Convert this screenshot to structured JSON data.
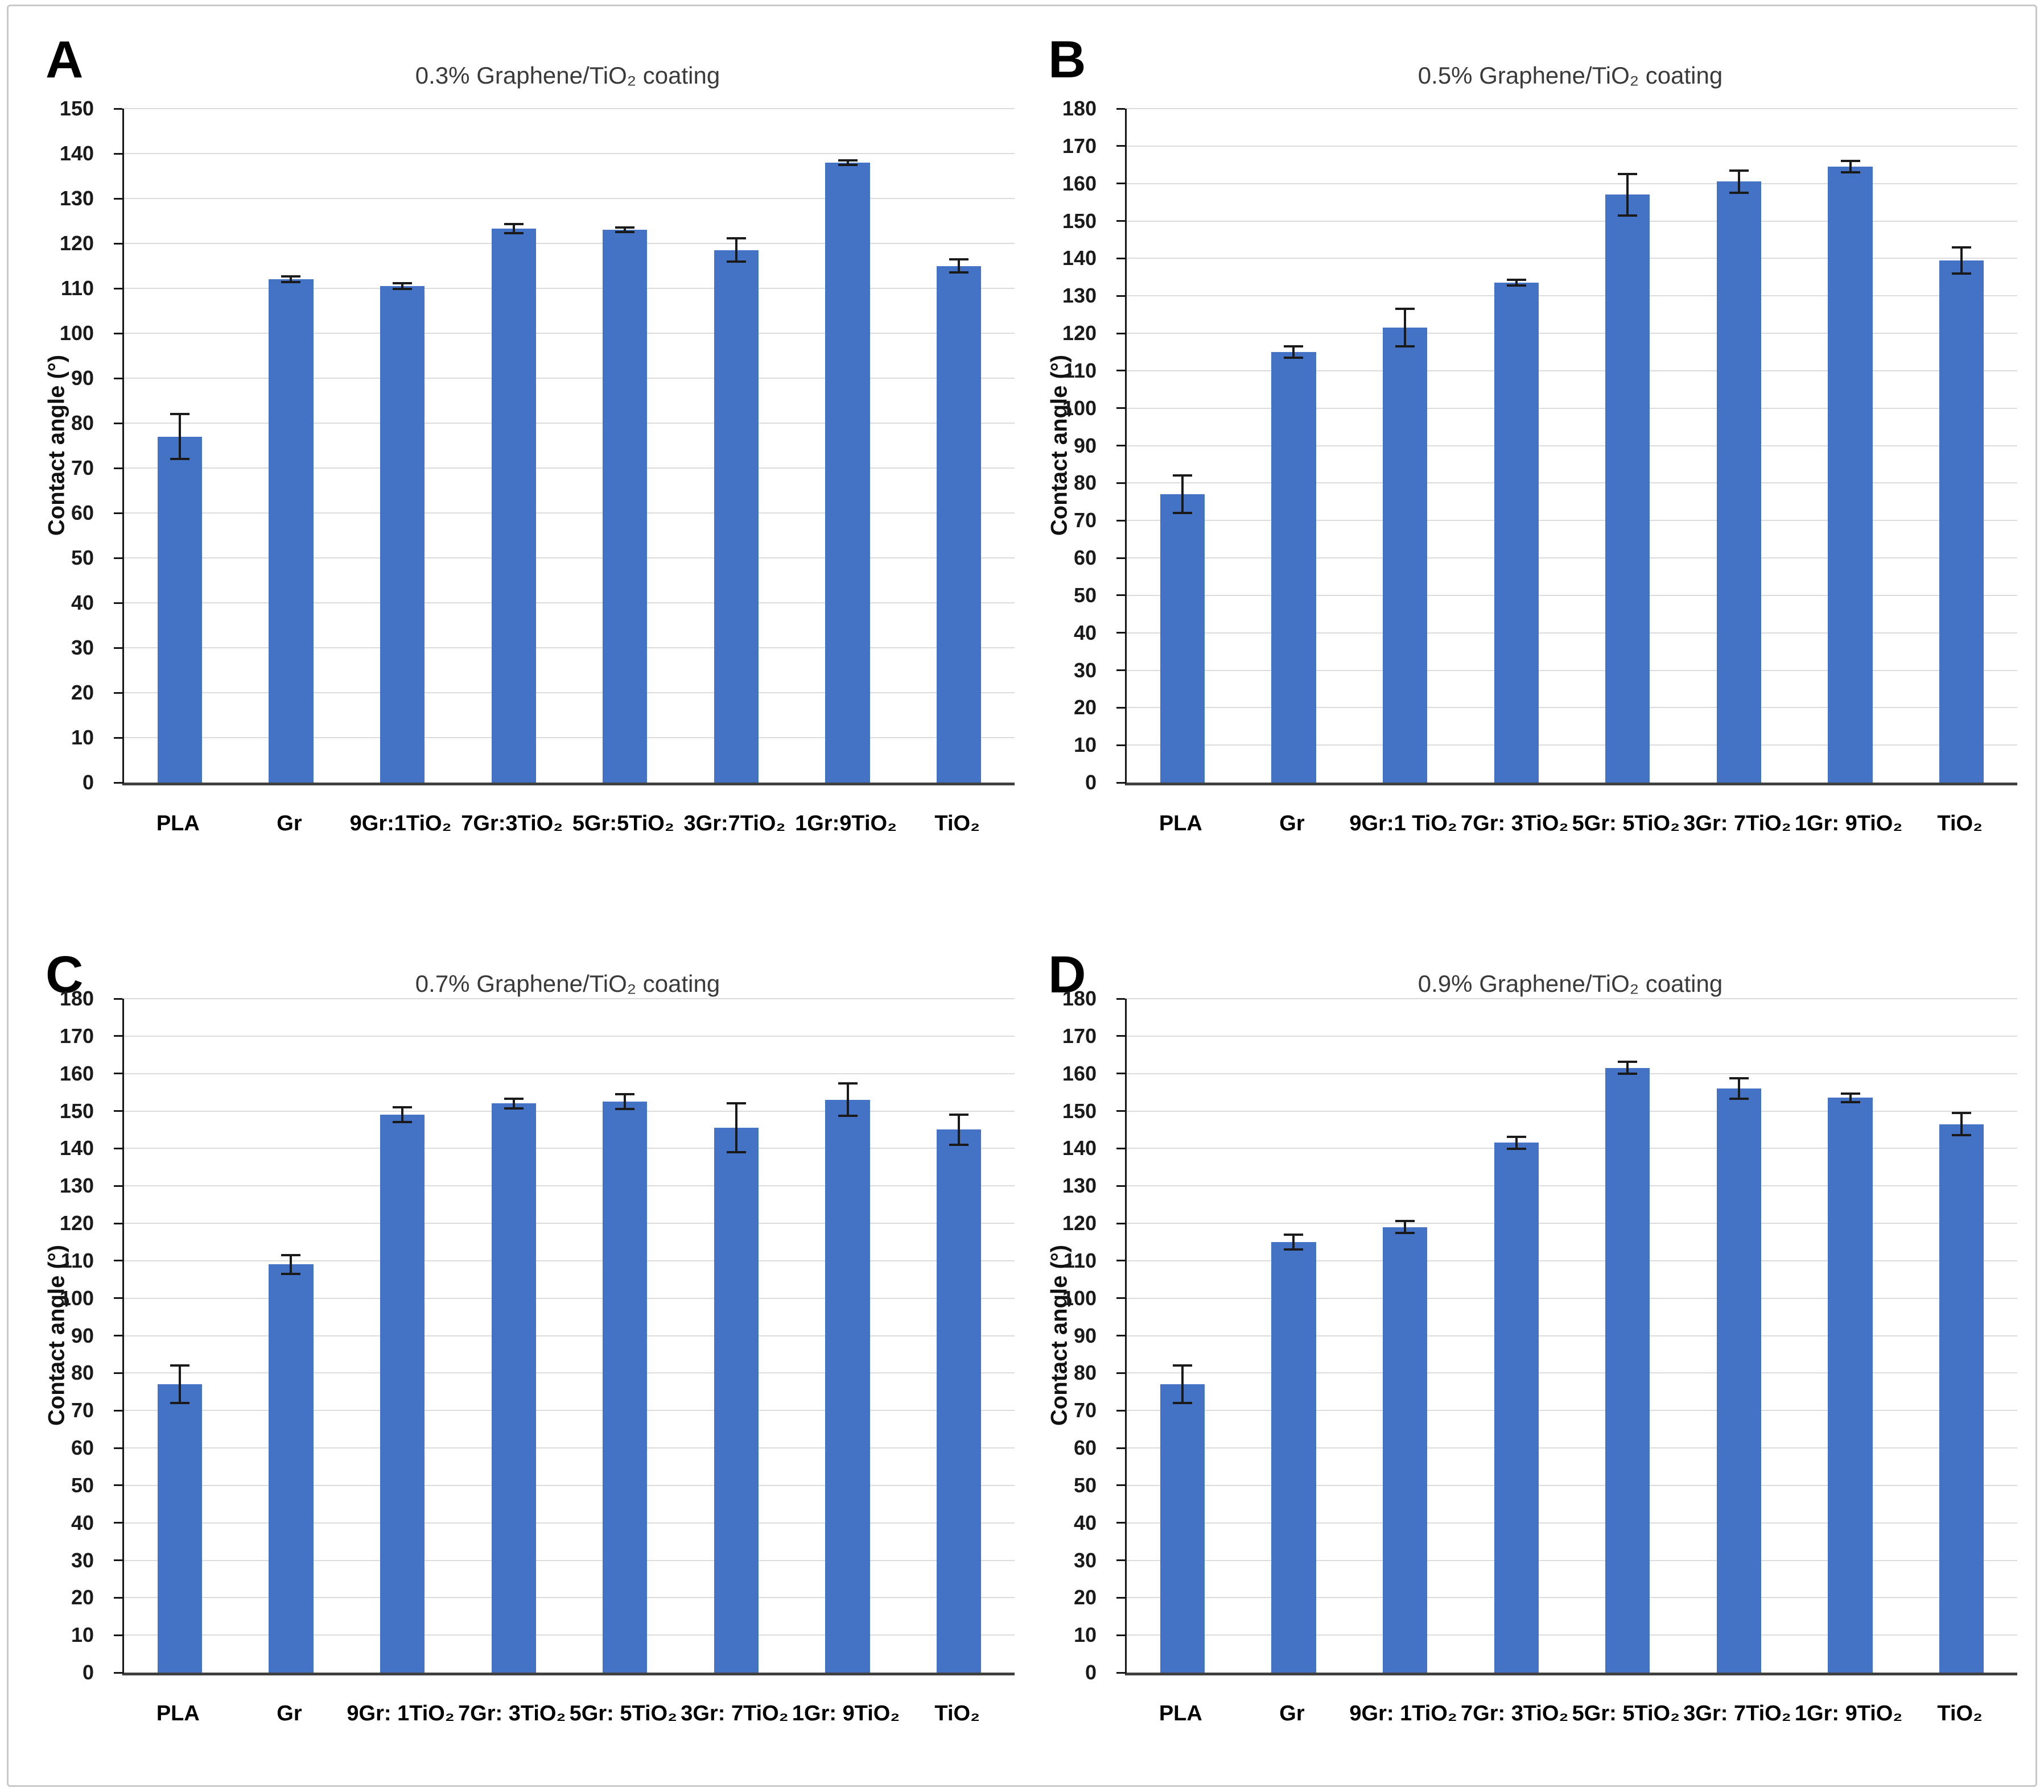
{
  "figure": {
    "background": "#ffffff",
    "border_color": "#c9c9c9",
    "panel_letters": [
      "A",
      "B",
      "C",
      "D"
    ]
  },
  "style": {
    "bar_color": "#4472C4",
    "error_bar_color": "#1a1a1a",
    "gridline_color": "#dcdcdc",
    "axis_color": "#161616"
  },
  "chart_data": [
    {
      "type": "bar",
      "panel": "A",
      "title": "0.3% Graphene/TiO₂ coating",
      "xlabel": "",
      "ylabel": "Contact angle (°)",
      "ylim": [
        0,
        150
      ],
      "ytick_step": 10,
      "grid": true,
      "legend": false,
      "categories": [
        "PLA",
        "Gr",
        "9Gr:1TiO₂",
        "7Gr:3TiO₂",
        "5Gr:5TiO₂",
        "3Gr:7TiO₂",
        "1Gr:9TiO₂",
        "TiO₂"
      ],
      "values": [
        77,
        112,
        110.5,
        123.3,
        123,
        118.5,
        138,
        115
      ],
      "errors": [
        5,
        0.6,
        0.6,
        1,
        0.5,
        2.6,
        0.5,
        1.5
      ]
    },
    {
      "type": "bar",
      "panel": "B",
      "title": "0.5% Graphene/TiO₂ coating",
      "xlabel": "",
      "ylabel": "Contact angle (°)",
      "ylim": [
        0,
        180
      ],
      "ytick_step": 10,
      "grid": true,
      "legend": false,
      "categories": [
        "PLA",
        "Gr",
        "9Gr:1 TiO₂",
        "7Gr: 3TiO₂",
        "5Gr: 5TiO₂",
        "3Gr: 7TiO₂",
        "1Gr: 9TiO₂",
        "TiO₂"
      ],
      "values": [
        77,
        115,
        121.5,
        133.5,
        157,
        160.5,
        164.5,
        139.5
      ],
      "errors": [
        5,
        1.5,
        5,
        0.8,
        5.5,
        3,
        1.5,
        3.5
      ]
    },
    {
      "type": "bar",
      "panel": "C",
      "title": "0.7% Graphene/TiO₂ coating",
      "xlabel": "",
      "ylabel": "Contact angle (°)",
      "ylim": [
        0,
        180
      ],
      "ytick_step": 10,
      "grid": true,
      "legend": false,
      "categories": [
        "PLA",
        "Gr",
        "9Gr: 1TiO₂",
        "7Gr: 3TiO₂",
        "5Gr: 5TiO₂",
        "3Gr: 7TiO₂",
        "1Gr: 9TiO₂",
        "TiO₂"
      ],
      "values": [
        77,
        109,
        149,
        152,
        152.5,
        145.5,
        153,
        145
      ],
      "errors": [
        5,
        2.5,
        2,
        1.3,
        2,
        6.5,
        4.3,
        4
      ]
    },
    {
      "type": "bar",
      "panel": "D",
      "title": "0.9% Graphene/TiO₂ coating",
      "xlabel": "",
      "ylabel": "Contact angle (°)",
      "ylim": [
        0,
        180
      ],
      "ytick_step": 10,
      "grid": true,
      "legend": false,
      "categories": [
        "PLA",
        "Gr",
        "9Gr: 1TiO₂",
        "7Gr: 3TiO₂",
        "5Gr: 5TiO₂",
        "3Gr: 7TiO₂",
        "1Gr: 9TiO₂",
        "TiO₂"
      ],
      "values": [
        77,
        115,
        119,
        141.5,
        161.5,
        156,
        153.5,
        146.5
      ],
      "errors": [
        5,
        2,
        1.6,
        1.6,
        1.6,
        2.8,
        1.2,
        3
      ]
    }
  ]
}
